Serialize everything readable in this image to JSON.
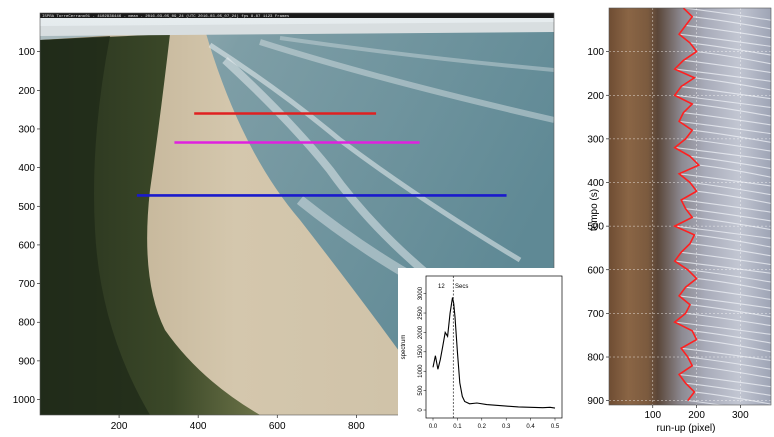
{
  "chart_data": [
    {
      "type": "image",
      "panel": "beach-camera-frame",
      "banner": "ISPRA TorreCerrano01 - 4102836446 - mean - 2016-03-05_09_24 (UTC 2016-03-05_07_24) fps 8.87 1123 Frames",
      "x_ticks": [
        200,
        400,
        600,
        800
      ],
      "y_ticks": [
        100,
        200,
        300,
        400,
        500,
        600,
        700,
        800,
        900,
        1000
      ],
      "xlim": [
        0,
        1300
      ],
      "ylim": [
        1040,
        0
      ],
      "transects": [
        {
          "color": "#e02020",
          "x": [
            390,
            850
          ],
          "y": 260
        },
        {
          "color": "#e020e0",
          "x": [
            340,
            960
          ],
          "y": 335
        },
        {
          "color": "#1a1acc",
          "x": [
            245,
            1180
          ],
          "y": 472
        }
      ]
    },
    {
      "type": "line",
      "panel": "spectrum-inset",
      "ylabel": "spectrum",
      "annotation": "12",
      "annotation_right": "Secs",
      "peak_x": 0.083,
      "x_ticks": [
        "0.0",
        "0.1",
        "0.2",
        "0.3",
        "0.4",
        "0.5"
      ],
      "y_ticks": [
        "0",
        "500",
        "1000",
        "1500",
        "2000",
        "2500",
        "3000"
      ],
      "xlim": [
        0,
        0.5
      ],
      "ylim": [
        0,
        3300
      ],
      "x": [
        0.0,
        0.01,
        0.02,
        0.03,
        0.04,
        0.05,
        0.06,
        0.07,
        0.08,
        0.085,
        0.09,
        0.1,
        0.11,
        0.12,
        0.13,
        0.15,
        0.18,
        0.22,
        0.26,
        0.3,
        0.35,
        0.4,
        0.45,
        0.48,
        0.5
      ],
      "y": [
        1100,
        1400,
        1050,
        1300,
        1650,
        2000,
        1900,
        2500,
        2900,
        2750,
        2400,
        1500,
        700,
        350,
        220,
        160,
        180,
        140,
        120,
        100,
        80,
        70,
        60,
        70,
        50
      ]
    },
    {
      "type": "timestack",
      "panel": "run-up-timestack",
      "xlabel": "run-up (pixel)",
      "ylabel": "tempo (s)",
      "x_ticks": [
        100,
        200,
        300
      ],
      "y_ticks": [
        100,
        200,
        300,
        400,
        500,
        600,
        700,
        800,
        900
      ],
      "xlim": [
        0,
        370
      ],
      "ylim": [
        0,
        910
      ],
      "runup_t": [
        0,
        20,
        40,
        60,
        80,
        100,
        120,
        140,
        160,
        180,
        200,
        220,
        240,
        260,
        280,
        300,
        320,
        340,
        360,
        380,
        400,
        420,
        440,
        460,
        480,
        500,
        520,
        540,
        560,
        580,
        600,
        620,
        640,
        660,
        680,
        700,
        720,
        740,
        760,
        780,
        800,
        820,
        840,
        860,
        880,
        900
      ],
      "runup_x": [
        170,
        190,
        175,
        160,
        185,
        200,
        170,
        150,
        195,
        165,
        150,
        190,
        170,
        160,
        190,
        175,
        150,
        185,
        205,
        160,
        185,
        200,
        165,
        175,
        190,
        150,
        195,
        185,
        165,
        150,
        180,
        200,
        175,
        160,
        185,
        175,
        150,
        190,
        200,
        165,
        180,
        190,
        160,
        175,
        195,
        180
      ]
    }
  ]
}
